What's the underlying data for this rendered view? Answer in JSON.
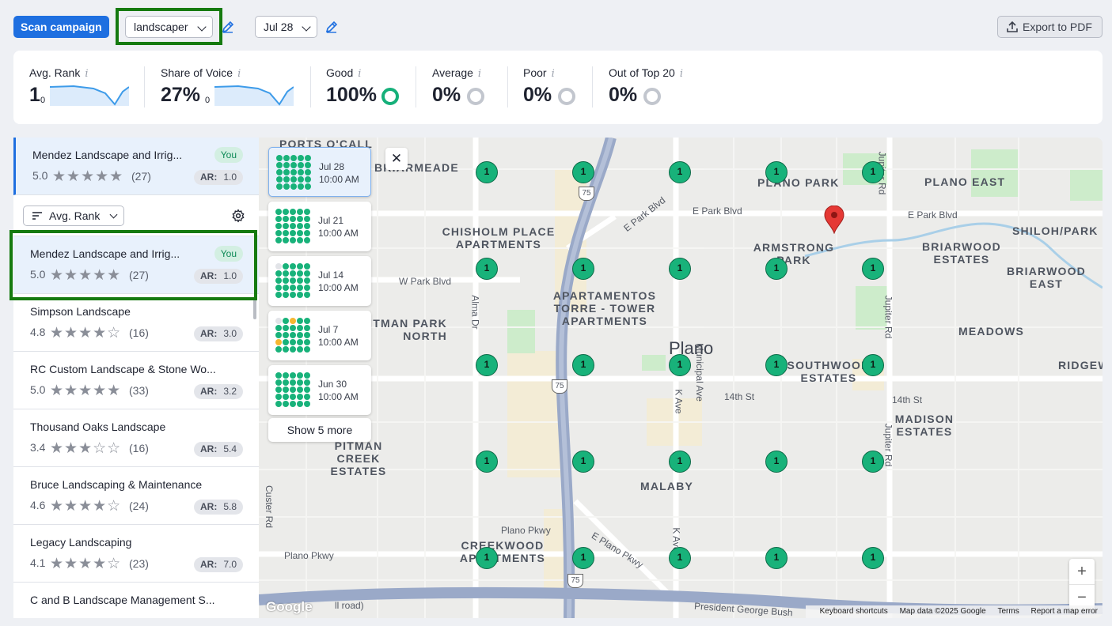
{
  "toolbar": {
    "scan_label": "Scan campaign",
    "keyword": "landscaper",
    "date": "Jul 28",
    "export_label": "Export to PDF"
  },
  "metrics": {
    "avg_rank": {
      "label": "Avg. Rank",
      "value": "1",
      "sub": "0"
    },
    "share_of_voice": {
      "label": "Share of Voice",
      "value": "27%",
      "sub": "0"
    },
    "good": {
      "label": "Good",
      "value": "100%"
    },
    "average": {
      "label": "Average",
      "value": "0%"
    },
    "poor": {
      "label": "Poor",
      "value": "0%"
    },
    "out_top20": {
      "label": "Out of Top 20",
      "value": "0%"
    },
    "info_glyph": "i",
    "colors": {
      "good": "#16b07a",
      "neutral": "#c2c6ce",
      "spark": "#3d9be9"
    }
  },
  "list": {
    "sort_label": "Avg. Rank",
    "you_badge": "You",
    "ar_label": "AR:",
    "pinned": {
      "name": "Mendez Landscape and Irrig...",
      "rating": "5.0",
      "stars": "★★★★★",
      "count": "(27)",
      "ar": "1.0"
    },
    "items": [
      {
        "name": "Mendez Landscape and Irrig...",
        "rating": "5.0",
        "stars": "★★★★★",
        "count": "(27)",
        "ar": "1.0"
      },
      {
        "name": "Simpson Landscape",
        "rating": "4.8",
        "stars": "★★★★☆",
        "count": "(16)",
        "ar": "3.0"
      },
      {
        "name": "RC Custom Landscape & Stone Wo...",
        "rating": "5.0",
        "stars": "★★★★★",
        "count": "(33)",
        "ar": "3.2"
      },
      {
        "name": "Thousand Oaks Landscape",
        "rating": "3.4",
        "stars": "★★★☆☆",
        "count": "(16)",
        "ar": "5.4"
      },
      {
        "name": "Bruce Landscaping & Maintenance",
        "rating": "4.6",
        "stars": "★★★★☆",
        "count": "(24)",
        "ar": "5.8"
      },
      {
        "name": "Legacy Landscaping",
        "rating": "4.1",
        "stars": "★★★★☆",
        "count": "(23)",
        "ar": "7.0"
      },
      {
        "name": "C and B Landscape Management S...",
        "rating": "",
        "stars": "",
        "count": "",
        "ar": ""
      }
    ]
  },
  "history": [
    {
      "date": "Jul 28",
      "time": "10:00 AM"
    },
    {
      "date": "Jul 21",
      "time": "10:00 AM"
    },
    {
      "date": "Jul 14",
      "time": "10:00 AM"
    },
    {
      "date": "Jul 7",
      "time": "10:00 AM"
    },
    {
      "date": "Jun 30",
      "time": "10:00 AM"
    }
  ],
  "history_more": "Show 5 more",
  "map": {
    "city": "Plano",
    "close_glyph": "✕",
    "rank_value": "1",
    "places": [
      "PORTS O'CALL",
      "BRIARMEADE",
      "PLANO PARK",
      "PLANO EAST",
      "CHISHOLM PLACE APARTMENTS",
      "ARMSTRONG PARK",
      "SHILOH/PARK",
      "BRIARWOOD ESTATES",
      "BRIARWOOD EAST",
      "APARTAMENTOS TORRE - TOWER APARTMENTS",
      "PITMAN PARK NORTH",
      "MEADOWS",
      "SOUTHWOOD ESTATES",
      "RIDGEWOOD",
      "MADISON ESTATES",
      "PITMAN CREEK ESTATES",
      "MALABY",
      "CREEKWOOD APARTMENTS"
    ],
    "streets": [
      "E Park Blvd",
      "E Park Blvd",
      "E Park Blvd",
      "W Park Blvd",
      "Alma Dr",
      "Jupiter Rd",
      "Jupiter Rd",
      "14th St",
      "14th St",
      "K Ave",
      "Municipal Ave",
      "Custer Rd",
      "Plano Pkwy",
      "Plano Pkwy",
      "E Plano Pkwy",
      "K Ave",
      "Jupiter Rd",
      "President George Bush",
      "Jupiter Rd"
    ],
    "highway_shields": [
      "75",
      "75",
      "75"
    ],
    "zoom_in": "+",
    "zoom_out": "−",
    "google_logo": "Google",
    "attribution": {
      "shortcuts": "Keyboard shortcuts",
      "data": "Map data ©2025 Google",
      "terms": "Terms",
      "report": "Report a map error"
    }
  }
}
